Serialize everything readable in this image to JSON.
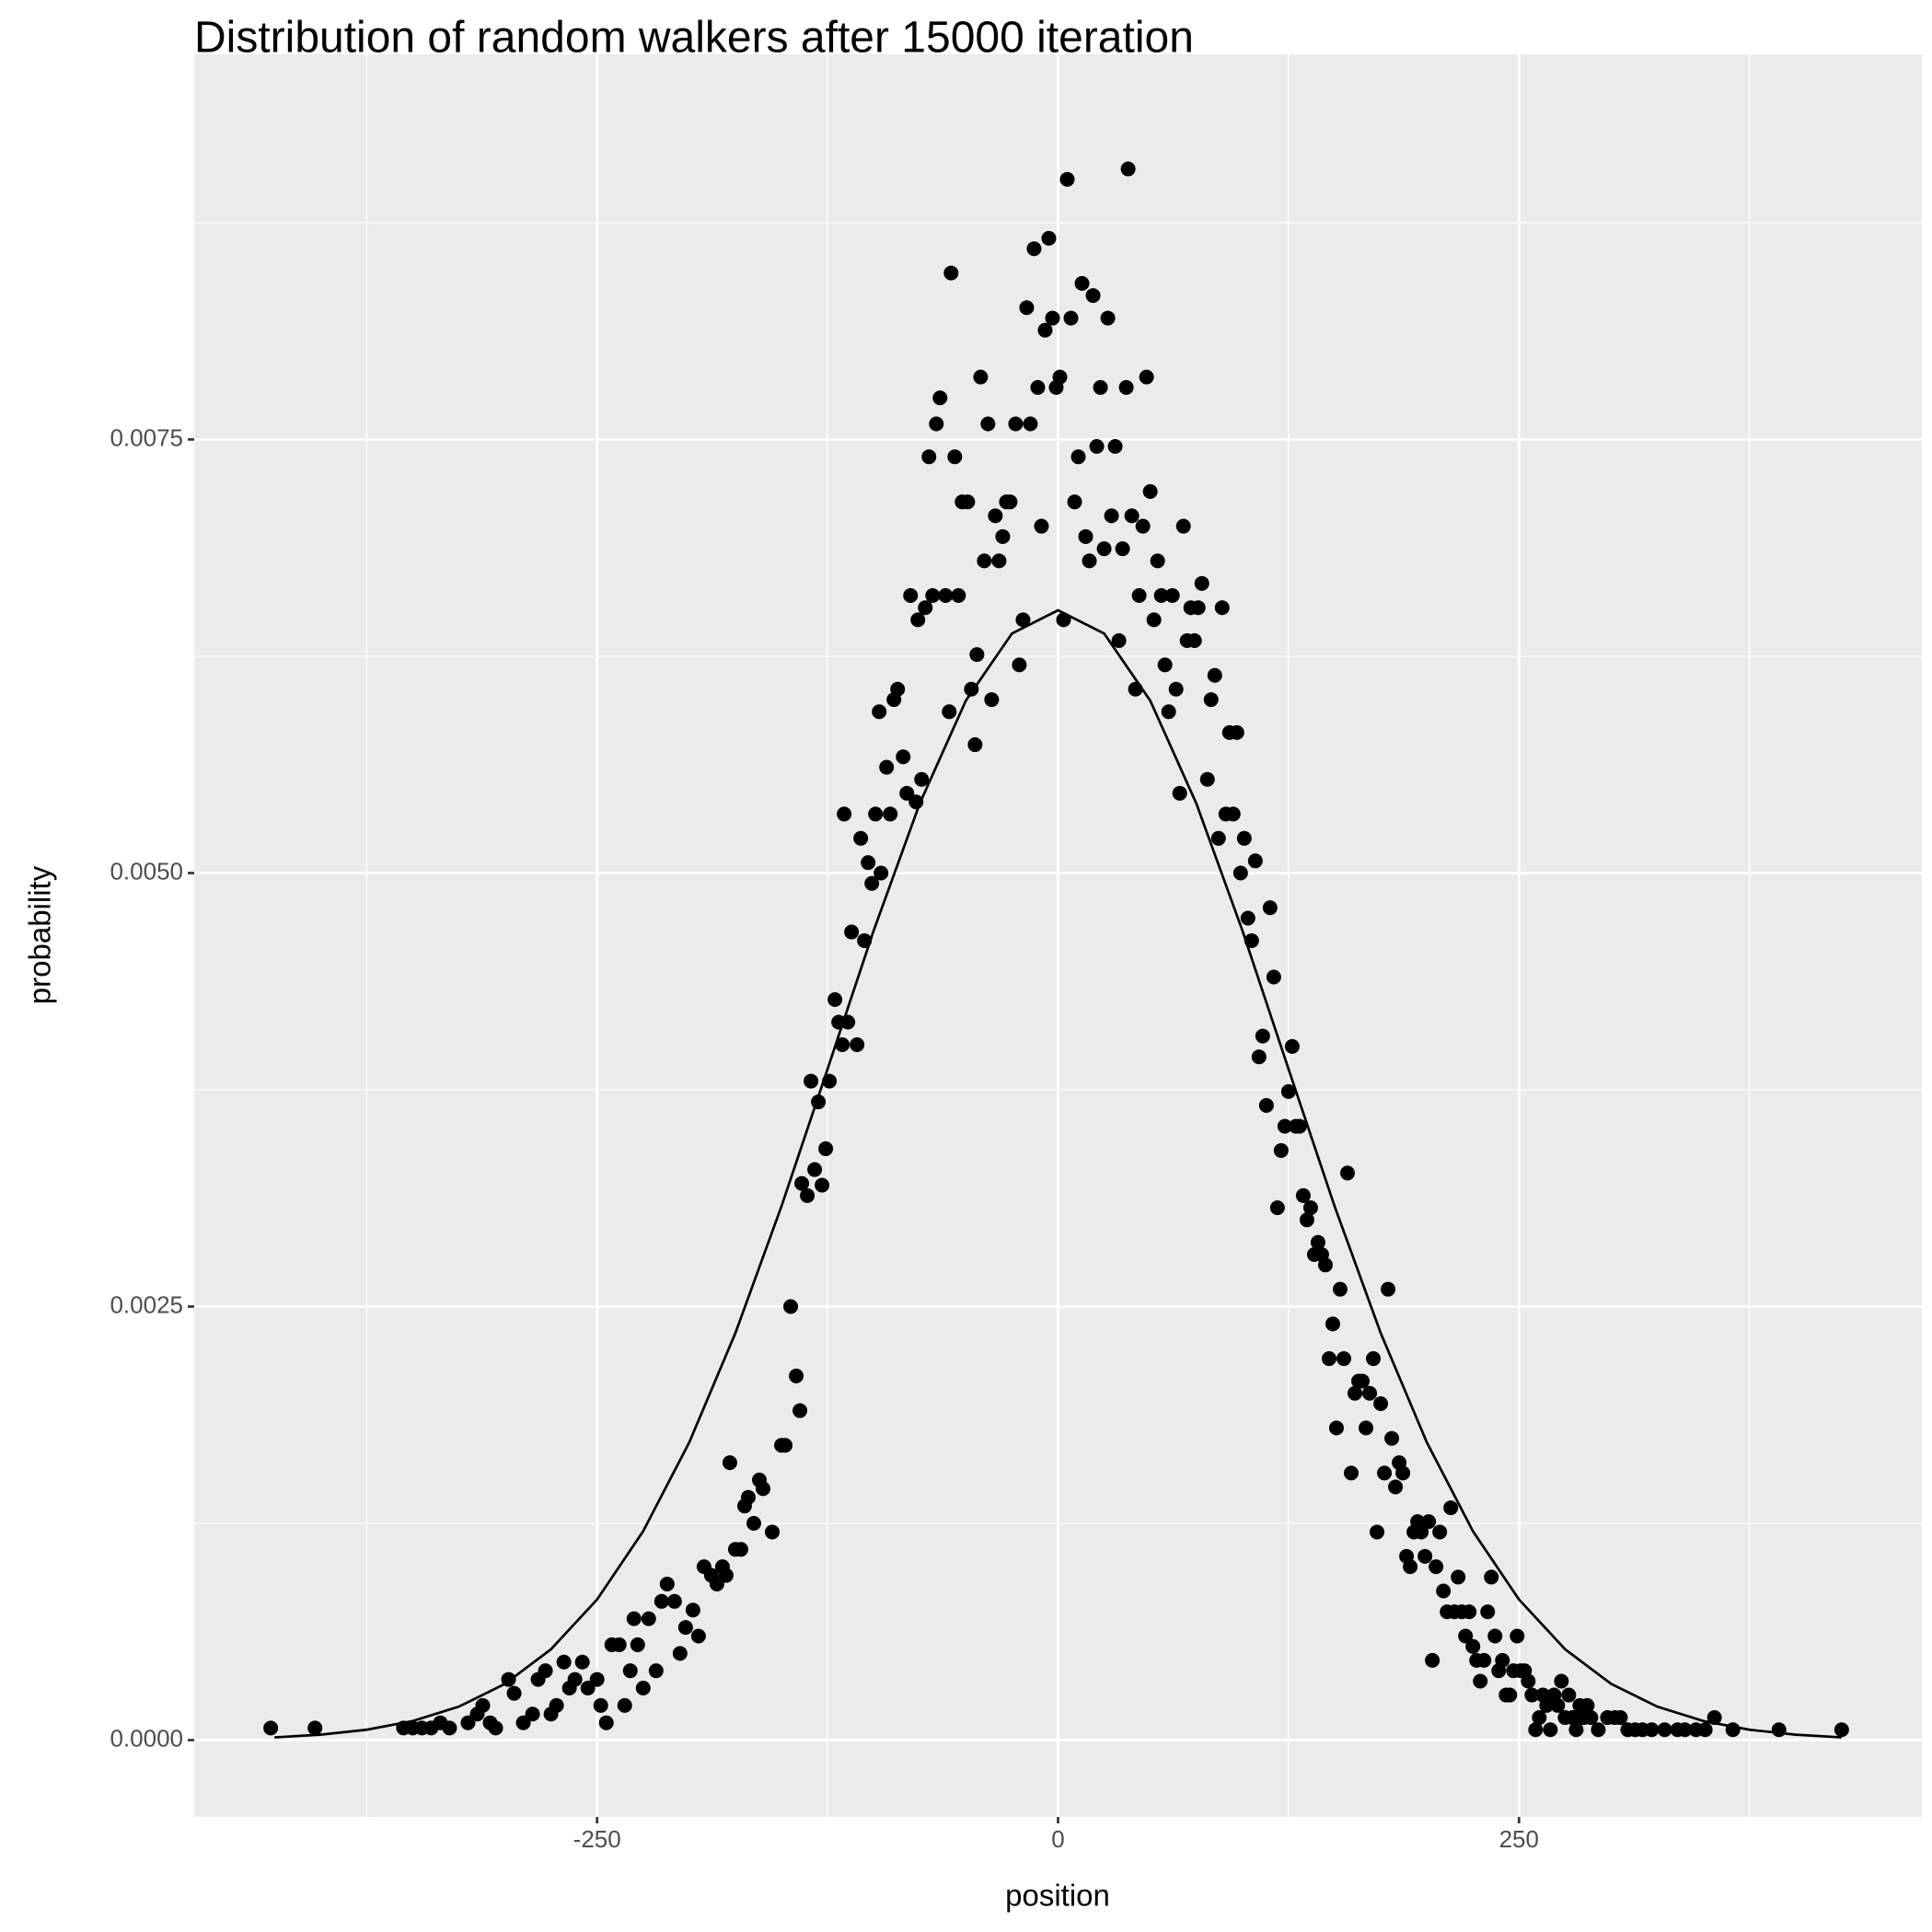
{
  "chart_data": {
    "type": "scatter",
    "title": "Distribution of random walkers after 15000 iteration",
    "x_label": "position",
    "y_label": "probability",
    "xlim": [
      -468.5,
      468.5
    ],
    "ylim": [
      -0.000443,
      0.009721
    ],
    "xticks": [
      -250,
      0,
      250
    ],
    "yticks": [
      {
        "value": 0,
        "label": "0.0000"
      },
      {
        "value": 0.0025,
        "label": "0.0025"
      },
      {
        "value": 0.005,
        "label": "0.0050"
      },
      {
        "value": 0.0075,
        "label": "0.0075"
      }
    ],
    "xminor": [
      -375,
      -125,
      125,
      375
    ],
    "yminor": [
      0.00125,
      0.00375,
      0.00625,
      0.00875
    ],
    "grid": true,
    "background": "#ebebeb",
    "series": [
      {
        "type": "scatter",
        "color": "#000000",
        "x": [
          -427,
          -403,
          -355,
          -350,
          -345,
          -340,
          -335,
          -330,
          -320,
          -315,
          -312,
          -308,
          -305,
          -298,
          -295,
          -290,
          -285,
          -282,
          -278,
          -275,
          -272,
          -268,
          -265,
          -262,
          -258,
          -255,
          -250,
          -248,
          -245,
          -242,
          -238,
          -235,
          -232,
          -230,
          -228,
          -225,
          -222,
          -218,
          -215,
          -212,
          -208,
          -205,
          -202,
          -198,
          -195,
          -192,
          -188,
          -185,
          -182,
          -180,
          -178,
          -175,
          -172,
          -170,
          -168,
          -165,
          -162,
          -160,
          -155,
          -150,
          -148,
          -145,
          -142,
          -140,
          -139,
          -136,
          -134,
          -132,
          -130,
          -128,
          -126,
          -124,
          -121,
          -119,
          -117,
          -116,
          -114,
          -112,
          -109,
          -107,
          -105,
          -103,
          -101,
          -99,
          -97,
          -96,
          -93,
          -91,
          -89,
          -87,
          -84,
          -82,
          -80,
          -77,
          -76,
          -74,
          -72,
          -70,
          -68,
          -66,
          -64,
          -61,
          -59,
          -58,
          -56,
          -54,
          -52,
          -49,
          -47,
          -45,
          -44,
          -42,
          -40,
          -38,
          -36,
          -34,
          -32,
          -30,
          -28,
          -26,
          -23,
          -21,
          -19,
          -17,
          -15,
          -13,
          -11,
          -9,
          -7,
          -5,
          -3,
          -1,
          1,
          3,
          5,
          7,
          9,
          11,
          13,
          15,
          17,
          19,
          21,
          23,
          25,
          27,
          29,
          31,
          33,
          35,
          37,
          38,
          40,
          42,
          44,
          46,
          48,
          50,
          52,
          54,
          56,
          58,
          60,
          62,
          64,
          66,
          68,
          70,
          72,
          74,
          76,
          78,
          81,
          83,
          85,
          87,
          89,
          91,
          93,
          95,
          97,
          99,
          101,
          103,
          105,
          107,
          109,
          111,
          113,
          115,
          117,
          119,
          121,
          123,
          125,
          127,
          129,
          131,
          133,
          135,
          137,
          139,
          141,
          143,
          145,
          147,
          149,
          151,
          153,
          155,
          157,
          159,
          161,
          163,
          165,
          167,
          169,
          171,
          173,
          175,
          177,
          179,
          181,
          183,
          185,
          187,
          189,
          191,
          193,
          195,
          197,
          199,
          201,
          203,
          205,
          207,
          209,
          211,
          213,
          215,
          217,
          219,
          221,
          223,
          225,
          227,
          229,
          231,
          233,
          235,
          237,
          239,
          241,
          243,
          245,
          247,
          249,
          251,
          253,
          255,
          257,
          259,
          261,
          263,
          265,
          267,
          269,
          271,
          273,
          275,
          277,
          279,
          281,
          283,
          285,
          287,
          289,
          293,
          298,
          302,
          305,
          309,
          313,
          317,
          322,
          329,
          336,
          340,
          346,
          351,
          356,
          366,
          391,
          425
        ],
        "values": [
          7e-05,
          7e-05,
          7e-05,
          7e-05,
          7e-05,
          7e-05,
          0.0001,
          7e-05,
          0.0001,
          0.00015,
          0.0002,
          0.0001,
          7e-05,
          0.00035,
          0.00027,
          0.0001,
          0.00015,
          0.00035,
          0.0004,
          0.00015,
          0.0002,
          0.00045,
          0.0003,
          0.00035,
          0.00045,
          0.0003,
          0.00035,
          0.0002,
          0.0001,
          0.00055,
          0.00055,
          0.0002,
          0.0004,
          0.0007,
          0.00055,
          0.0003,
          0.0007,
          0.0004,
          0.0008,
          0.0009,
          0.0008,
          0.0005,
          0.00065,
          0.00075,
          0.0006,
          0.001,
          0.00095,
          0.0009,
          0.001,
          0.00095,
          0.0016,
          0.0011,
          0.0011,
          0.00135,
          0.0014,
          0.00125,
          0.0015,
          0.00145,
          0.0012,
          0.0017,
          0.0017,
          0.0025,
          0.0021,
          0.0019,
          0.00321,
          0.00314,
          0.0038,
          0.00329,
          0.00368,
          0.0032,
          0.00341,
          0.0038,
          0.00427,
          0.00414,
          0.00401,
          0.00534,
          0.00414,
          0.00466,
          0.00401,
          0.0052,
          0.00461,
          0.00506,
          0.00494,
          0.00534,
          0.00593,
          0.005,
          0.00561,
          0.00534,
          0.006,
          0.00606,
          0.00567,
          0.00546,
          0.0066,
          0.00541,
          0.00646,
          0.00554,
          0.00653,
          0.0074,
          0.0066,
          0.00759,
          0.00774,
          0.0066,
          0.00593,
          0.00846,
          0.0074,
          0.0066,
          0.00714,
          0.00714,
          0.00606,
          0.00574,
          0.00626,
          0.00786,
          0.0068,
          0.00759,
          0.006,
          0.00706,
          0.0068,
          0.00694,
          0.00714,
          0.00714,
          0.00759,
          0.0062,
          0.00646,
          0.00826,
          0.00759,
          0.0086,
          0.0078,
          0.007,
          0.00813,
          0.00866,
          0.0082,
          0.0078,
          0.00786,
          0.00646,
          0.009,
          0.0082,
          0.00714,
          0.0074,
          0.0084,
          0.00694,
          0.0068,
          0.00833,
          0.00746,
          0.0078,
          0.00687,
          0.0082,
          0.00706,
          0.00746,
          0.00634,
          0.00687,
          0.0078,
          0.00906,
          0.00706,
          0.00606,
          0.0066,
          0.007,
          0.00786,
          0.0072,
          0.00646,
          0.0068,
          0.0066,
          0.0062,
          0.00593,
          0.0066,
          0.00606,
          0.00546,
          0.007,
          0.00634,
          0.00653,
          0.00634,
          0.00653,
          0.00667,
          0.00554,
          0.006,
          0.00614,
          0.0052,
          0.00653,
          0.00534,
          0.00581,
          0.00534,
          0.00581,
          0.005,
          0.0052,
          0.00474,
          0.00461,
          0.00507,
          0.00394,
          0.00406,
          0.00366,
          0.0048,
          0.0044,
          0.00307,
          0.0034,
          0.00354,
          0.00374,
          0.004,
          0.00354,
          0.00354,
          0.00314,
          0.003,
          0.00307,
          0.0028,
          0.00287,
          0.0028,
          0.00274,
          0.0022,
          0.0024,
          0.0018,
          0.0026,
          0.0022,
          0.00327,
          0.00154,
          0.002,
          0.00207,
          0.00207,
          0.0018,
          0.002,
          0.0022,
          0.0012,
          0.00194,
          0.00154,
          0.0026,
          0.00174,
          0.00146,
          0.0016,
          0.00154,
          0.00106,
          0.001,
          0.0012,
          0.00126,
          0.0012,
          0.00106,
          0.00126,
          0.00046,
          0.001,
          0.0012,
          0.00086,
          0.00074,
          0.00134,
          0.00074,
          0.00094,
          0.00074,
          0.0006,
          0.00074,
          0.00054,
          0.00046,
          0.00034,
          0.00046,
          0.00074,
          0.00094,
          0.0006,
          0.0004,
          0.00046,
          0.00026,
          0.00026,
          0.0004,
          0.0006,
          0.0004,
          0.0004,
          0.00034,
          0.00026,
          6e-05,
          0.00013,
          0.00026,
          0.0002,
          6e-05,
          0.00026,
          0.0002,
          0.00034,
          0.00013,
          0.00026,
          0.00013,
          6e-05,
          0.0002,
          0.00013,
          0.0002,
          0.00013,
          6e-05,
          0.00013,
          0.00013,
          0.00013,
          6e-05,
          6e-05,
          6e-05,
          6e-05,
          6e-05,
          6e-05,
          6e-05,
          6e-05,
          6e-05,
          0.00013,
          6e-05,
          6e-05,
          6e-05
        ]
      },
      {
        "type": "line",
        "color": "#000000",
        "x": [
          -425,
          -400,
          -375,
          -350,
          -325,
          -300,
          -275,
          -250,
          -225,
          -200,
          -175,
          -150,
          -125,
          -100,
          -75,
          -50,
          -25,
          0,
          25,
          50,
          75,
          100,
          125,
          150,
          175,
          200,
          225,
          250,
          275,
          300,
          325,
          350,
          375,
          400,
          425
        ],
        "values": [
          1.58e-05,
          3.15e-05,
          6e-05,
          0.00011,
          0.000193,
          0.000324,
          0.000524,
          0.000811,
          0.001205,
          0.001717,
          0.002347,
          0.003078,
          0.00387,
          0.004668,
          0.005401,
          0.005994,
          0.006381,
          0.006515,
          0.006381,
          0.005994,
          0.005401,
          0.004668,
          0.00387,
          0.003078,
          0.002347,
          0.001717,
          0.001205,
          0.000811,
          0.000524,
          0.000324,
          0.000193,
          0.00011,
          6e-05,
          3.15e-05,
          1.58e-05
        ]
      }
    ]
  }
}
